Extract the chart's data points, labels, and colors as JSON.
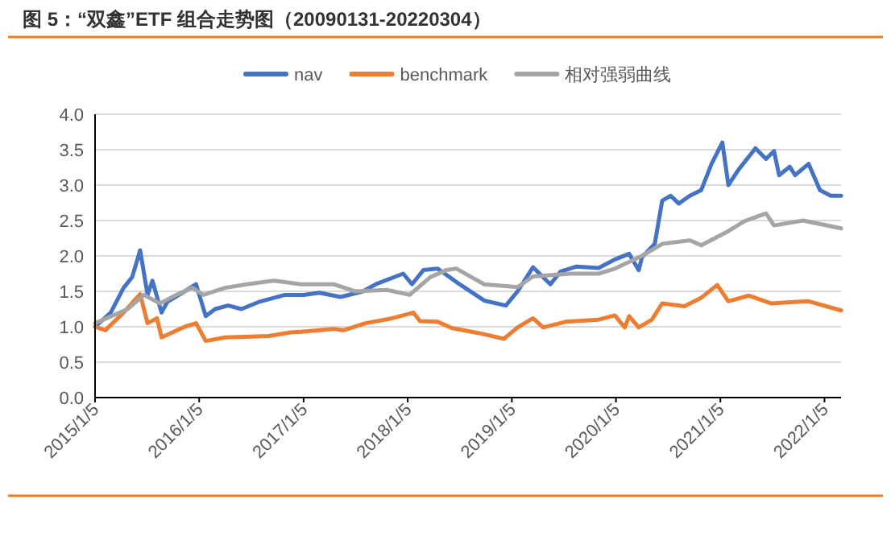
{
  "chart_data": {
    "type": "line",
    "title": "图 5：“双鑫”ETF 组合走势图（20090131-20220304）",
    "xlim": [
      "2015-01-05",
      "2022-03-04"
    ],
    "xticks": [
      {
        "value": "2015-01-05",
        "label": "2015/1/5"
      },
      {
        "value": "2016-01-05",
        "label": "2016/1/5"
      },
      {
        "value": "2017-01-05",
        "label": "2017/1/5"
      },
      {
        "value": "2018-01-05",
        "label": "2018/1/5"
      },
      {
        "value": "2019-01-05",
        "label": "2019/1/5"
      },
      {
        "value": "2020-01-05",
        "label": "2020/1/5"
      },
      {
        "value": "2021-01-05",
        "label": "2021/1/5"
      },
      {
        "value": "2022-01-05",
        "label": "2022/1/5"
      }
    ],
    "ylim": [
      0,
      4
    ],
    "yticks": [
      {
        "value": 0,
        "label": "0.0"
      },
      {
        "value": 0.5,
        "label": "0.5"
      },
      {
        "value": 1,
        "label": "1.0"
      },
      {
        "value": 1.5,
        "label": "1.5"
      },
      {
        "value": 2,
        "label": "2.0"
      },
      {
        "value": 2.5,
        "label": "2.5"
      },
      {
        "value": 3,
        "label": "3.0"
      },
      {
        "value": 3.5,
        "label": "3.5"
      },
      {
        "value": 4,
        "label": "4.0"
      }
    ],
    "grid": "y",
    "legend": "top",
    "series": [
      {
        "name": "nav",
        "color": "#4472c4",
        "x": [
          "2015-01-05",
          "2015-03-01",
          "2015-04-15",
          "2015-05-15",
          "2015-06-12",
          "2015-07-08",
          "2015-07-25",
          "2015-08-26",
          "2015-09-15",
          "2015-11-15",
          "2015-12-25",
          "2016-01-28",
          "2016-03-01",
          "2016-04-15",
          "2016-06-01",
          "2016-08-01",
          "2016-11-01",
          "2017-01-05",
          "2017-03-01",
          "2017-05-15",
          "2017-08-01",
          "2017-09-15",
          "2017-12-20",
          "2018-01-20",
          "2018-03-01",
          "2018-04-20",
          "2018-06-25",
          "2018-09-30",
          "2018-12-15",
          "2019-01-25",
          "2019-03-20",
          "2019-05-20",
          "2019-06-25",
          "2019-08-20",
          "2019-11-05",
          "2020-01-01",
          "2020-02-20",
          "2020-03-25",
          "2020-04-05",
          "2020-05-20",
          "2020-06-15",
          "2020-07-15",
          "2020-08-12",
          "2020-09-20",
          "2020-10-30",
          "2020-12-05",
          "2021-01-12",
          "2021-02-02",
          "2021-03-10",
          "2021-05-08",
          "2021-06-14",
          "2021-07-12",
          "2021-07-30",
          "2021-09-05",
          "2021-09-24",
          "2021-11-10",
          "2021-12-20",
          "2022-01-27",
          "2022-03-04"
        ],
        "values": [
          1.0,
          1.2,
          1.55,
          1.7,
          2.08,
          1.45,
          1.65,
          1.2,
          1.35,
          1.5,
          1.6,
          1.15,
          1.25,
          1.3,
          1.25,
          1.35,
          1.45,
          1.45,
          1.48,
          1.42,
          1.5,
          1.6,
          1.75,
          1.6,
          1.8,
          1.82,
          1.63,
          1.37,
          1.3,
          1.5,
          1.84,
          1.6,
          1.78,
          1.85,
          1.83,
          1.95,
          2.03,
          1.8,
          1.98,
          2.17,
          2.78,
          2.85,
          2.74,
          2.85,
          2.93,
          3.3,
          3.6,
          3.0,
          3.22,
          3.52,
          3.37,
          3.48,
          3.14,
          3.26,
          3.14,
          3.3,
          2.93,
          2.85,
          2.85
        ]
      },
      {
        "name": "benchmark",
        "color": "#ed7d31",
        "x": [
          "2015-01-05",
          "2015-02-10",
          "2015-04-15",
          "2015-06-12",
          "2015-07-08",
          "2015-08-10",
          "2015-08-26",
          "2015-11-15",
          "2015-12-25",
          "2016-01-28",
          "2016-04-05",
          "2016-09-05",
          "2016-11-20",
          "2016-12-28",
          "2017-04-20",
          "2017-05-25",
          "2017-08-10",
          "2017-11-12",
          "2018-01-25",
          "2018-02-17",
          "2018-04-20",
          "2018-06-10",
          "2018-09-12",
          "2018-12-08",
          "2019-01-25",
          "2019-03-20",
          "2019-04-25",
          "2019-07-12",
          "2019-11-05",
          "2020-01-01",
          "2020-02-05",
          "2020-02-20",
          "2020-03-25",
          "2020-05-10",
          "2020-06-15",
          "2020-09-01",
          "2020-10-30",
          "2020-12-25",
          "2021-02-02",
          "2021-04-15",
          "2021-07-01",
          "2021-11-10",
          "2022-03-04"
        ],
        "values": [
          1.0,
          0.95,
          1.2,
          1.46,
          1.05,
          1.12,
          0.85,
          1.0,
          1.05,
          0.8,
          0.85,
          0.87,
          0.92,
          0.93,
          0.97,
          0.95,
          1.05,
          1.12,
          1.2,
          1.08,
          1.07,
          0.98,
          0.91,
          0.83,
          0.99,
          1.12,
          0.99,
          1.07,
          1.1,
          1.16,
          0.99,
          1.15,
          0.99,
          1.1,
          1.33,
          1.29,
          1.41,
          1.59,
          1.36,
          1.44,
          1.33,
          1.36,
          1.23
        ]
      },
      {
        "name": "相对强弱曲线",
        "color": "#a5a5a5",
        "x": [
          "2015-01-05",
          "2015-04-30",
          "2015-06-25",
          "2015-08-20",
          "2015-10-17",
          "2015-12-12",
          "2016-01-20",
          "2016-04-05",
          "2016-06-20",
          "2016-09-22",
          "2016-12-28",
          "2017-04-20",
          "2017-07-05",
          "2017-10-25",
          "2018-01-12",
          "2018-03-25",
          "2018-05-20",
          "2018-06-25",
          "2018-09-30",
          "2019-01-25",
          "2019-03-20",
          "2019-07-30",
          "2019-11-05",
          "2020-01-01",
          "2020-04-05",
          "2020-06-15",
          "2020-09-20",
          "2020-10-30",
          "2021-02-02",
          "2021-03-30",
          "2021-06-14",
          "2021-07-12",
          "2021-10-22",
          "2022-03-04"
        ],
        "values": [
          1.05,
          1.25,
          1.45,
          1.33,
          1.45,
          1.55,
          1.45,
          1.55,
          1.6,
          1.65,
          1.6,
          1.6,
          1.5,
          1.52,
          1.45,
          1.7,
          1.8,
          1.82,
          1.6,
          1.56,
          1.71,
          1.75,
          1.75,
          1.82,
          2.0,
          2.17,
          2.22,
          2.15,
          2.35,
          2.49,
          2.6,
          2.43,
          2.5,
          2.39
        ]
      }
    ]
  }
}
